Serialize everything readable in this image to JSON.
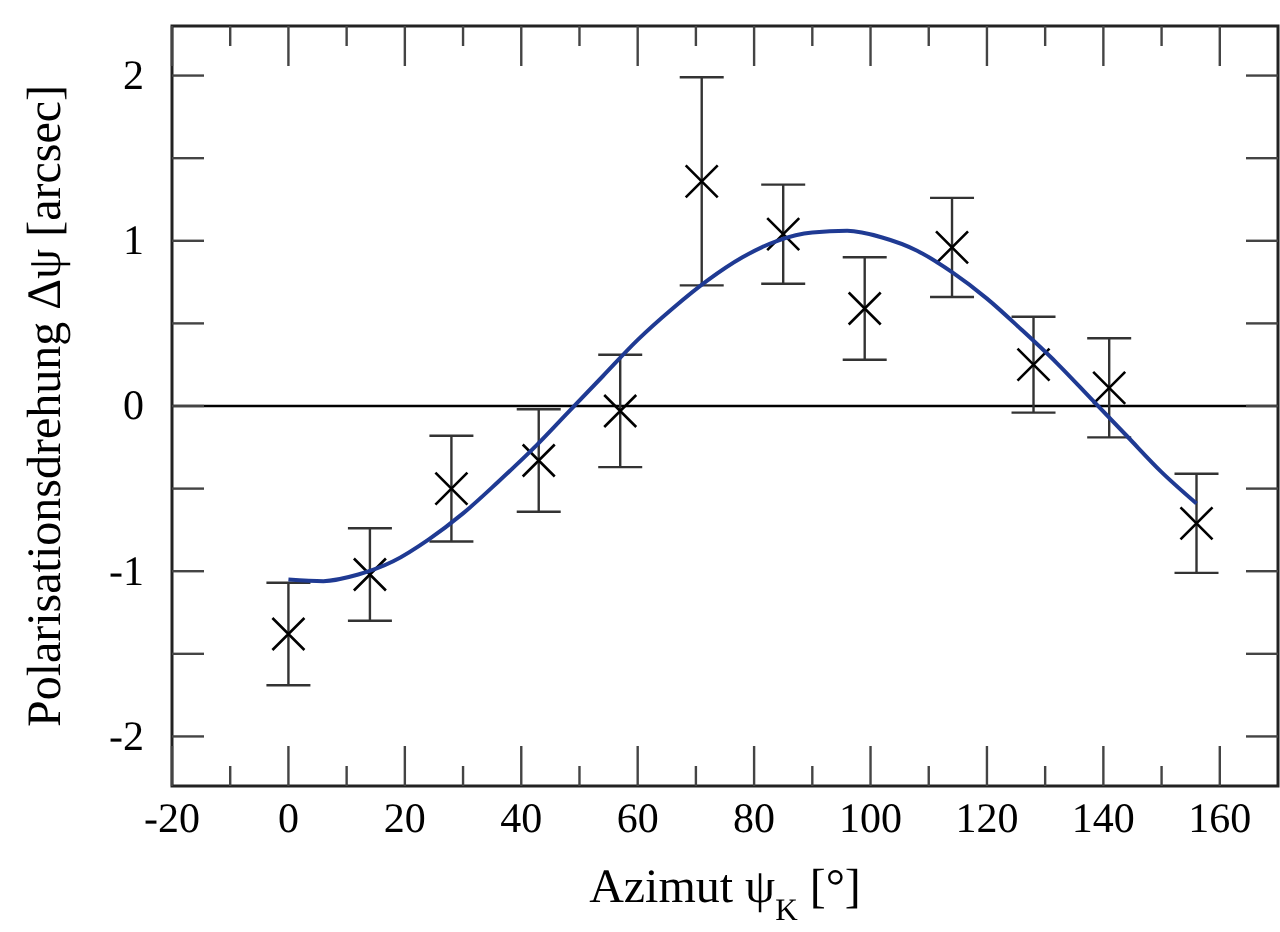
{
  "chart_data": {
    "type": "scatter",
    "xlabel": "Azimut ψ$_{K}$ [°]",
    "ylabel": "Polarisationsdrehung  Δψ [arcsec]",
    "xlim": [
      -20,
      170
    ],
    "xticks": [
      -20,
      {
        "value": -10,
        "label": null
      },
      0,
      {
        "value": 10,
        "label": null
      },
      20,
      {
        "value": 30,
        "label": null
      },
      40,
      {
        "value": 50,
        "label": null
      },
      60,
      {
        "value": 70,
        "label": null
      },
      80,
      {
        "value": 90,
        "label": null
      },
      100,
      {
        "value": 110,
        "label": null
      },
      120,
      {
        "value": 130,
        "label": null
      },
      140,
      {
        "value": 150,
        "label": null
      },
      160
    ],
    "ylim": [
      -2.3,
      2.3
    ],
    "yticks": [
      -2,
      {
        "value": -1.5,
        "label": null
      },
      -1,
      {
        "value": -0.5,
        "label": null
      },
      0,
      {
        "value": 0.5,
        "label": null
      },
      1,
      {
        "value": 1.5,
        "label": null
      },
      2
    ],
    "grid": false,
    "marker": "cross",
    "ref_lines": [
      {
        "axis": "y",
        "value": 0,
        "color": "#000000"
      }
    ],
    "series": [
      {
        "color": "#000000",
        "x": [
          0,
          14,
          28,
          43,
          57,
          71,
          85,
          99,
          114,
          128,
          141,
          156
        ],
        "values": [
          -1.38,
          -1.02,
          -0.5,
          -0.33,
          -0.03,
          1.36,
          1.04,
          0.59,
          0.96,
          0.25,
          0.11,
          -0.71
        ],
        "errors": [
          0.31,
          0.28,
          0.32,
          0.31,
          0.34,
          0.63,
          0.3,
          0.31,
          0.3,
          0.29,
          0.3,
          0.3
        ]
      },
      {
        "type": "line",
        "color": "#1f3a93",
        "marker": "none",
        "x": [
          0,
          6,
          12,
          18,
          24,
          30,
          36,
          42,
          48,
          54,
          60,
          66,
          72,
          78,
          84,
          90,
          96,
          102,
          108,
          114,
          120,
          126,
          132,
          138,
          144,
          150,
          156
        ],
        "values": [
          -1.05,
          -1.06,
          -1.02,
          -0.94,
          -0.81,
          -0.65,
          -0.46,
          -0.26,
          -0.04,
          0.18,
          0.4,
          0.59,
          0.76,
          0.9,
          1.0,
          1.05,
          1.06,
          1.02,
          0.94,
          0.81,
          0.65,
          0.46,
          0.26,
          0.04,
          -0.18,
          -0.4,
          -0.59
        ]
      }
    ]
  }
}
